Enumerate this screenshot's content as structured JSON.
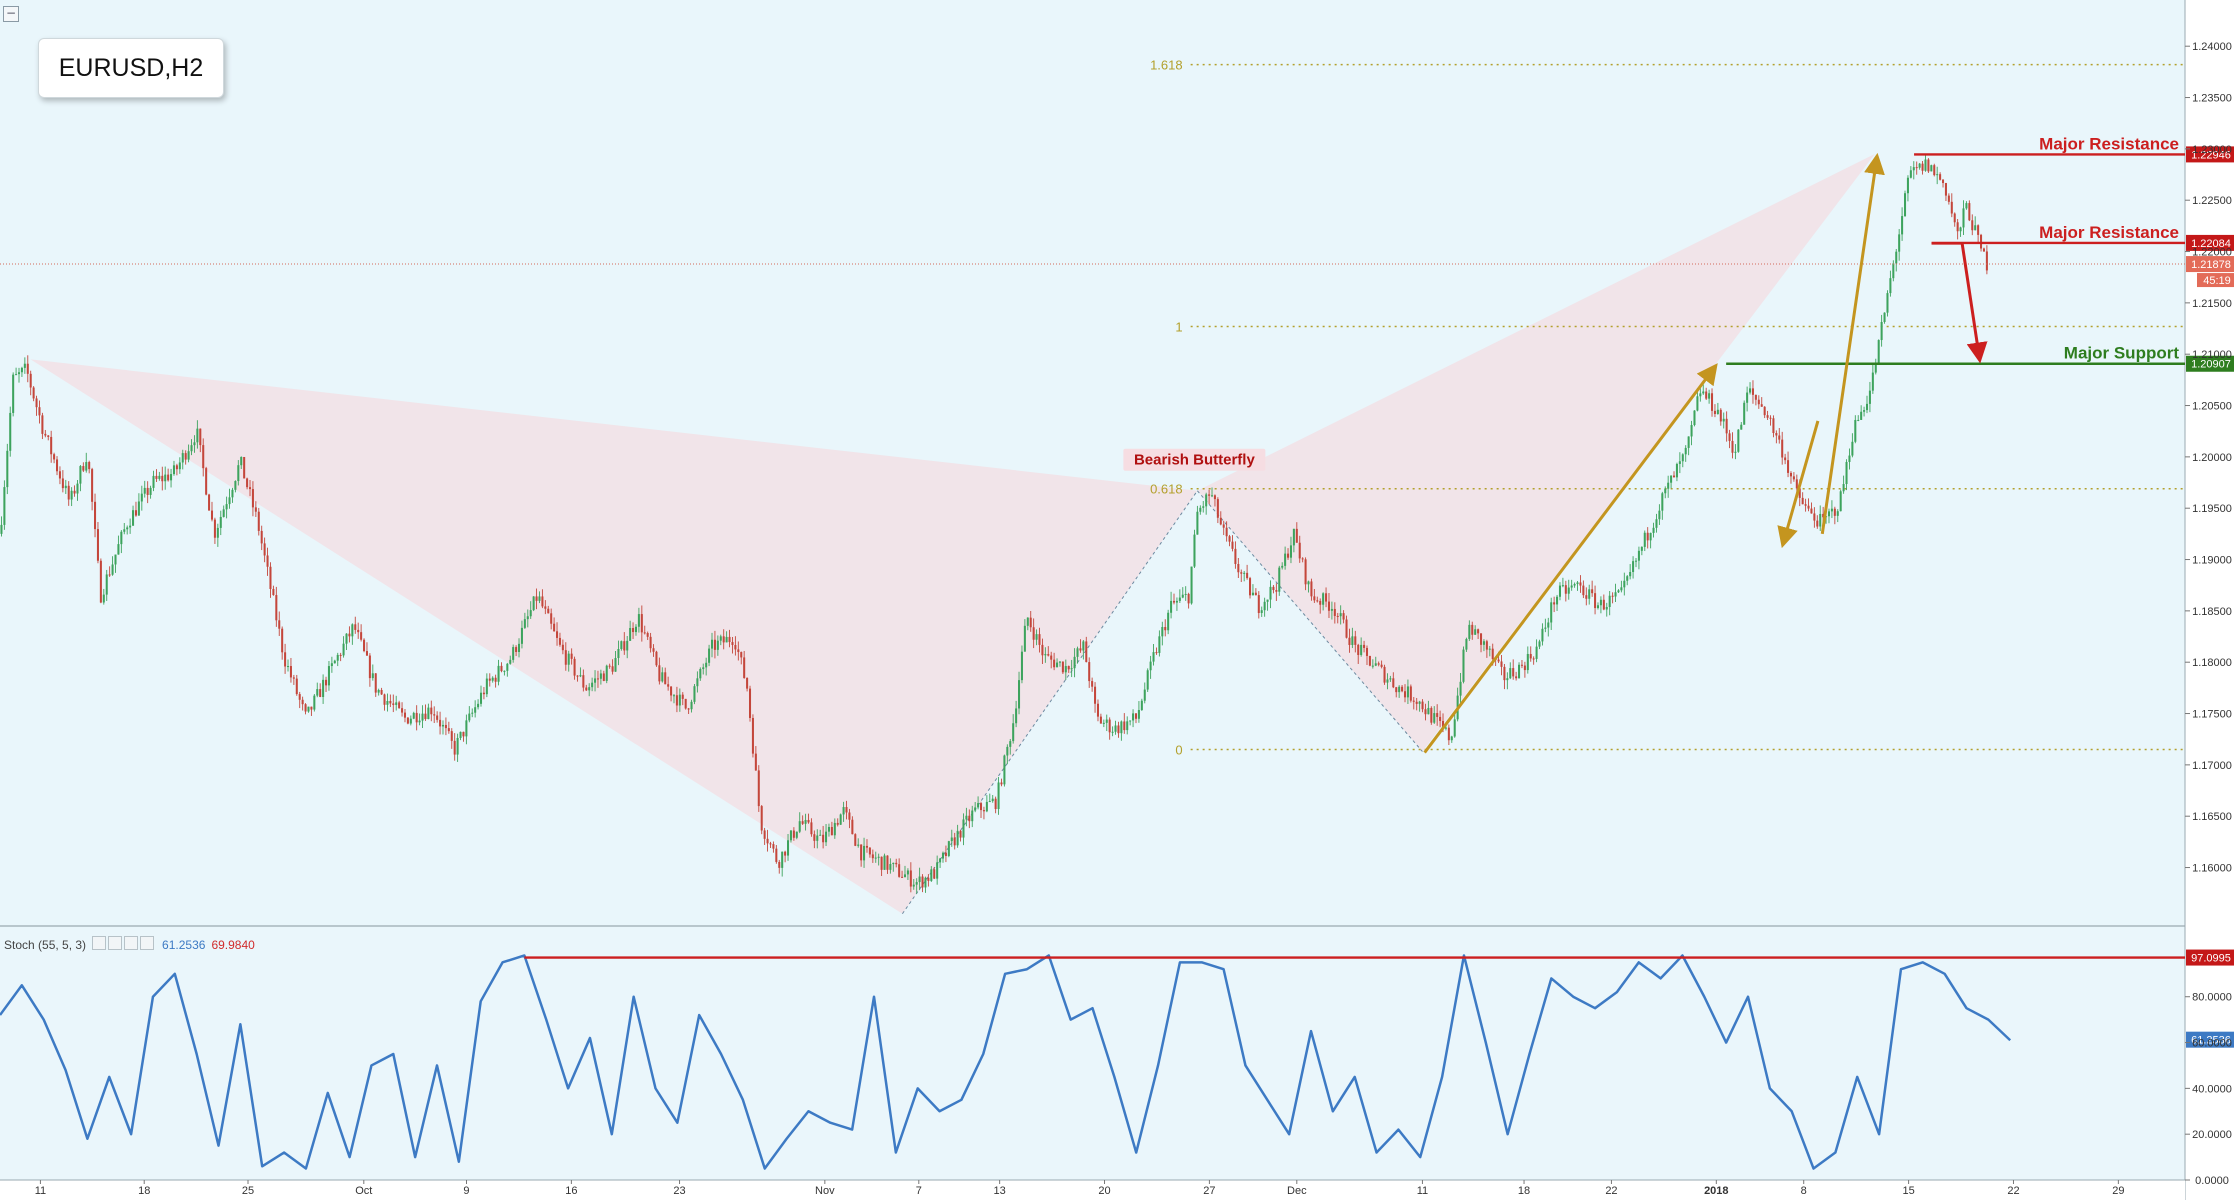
{
  "title": "EURUSD,H2",
  "colors": {
    "background": "#e9f6fb",
    "bullish": "#3da35d",
    "bearish": "#c4463b",
    "resistance": "#cc1f1f",
    "support": "#2e7d1f",
    "fib": "#b3a02c",
    "pattern_fill": "#f3dde3",
    "arrow_gold": "#c4951f",
    "stoch_line": "#3d7ac4",
    "price_line": "#d36a5a"
  },
  "annotations": {
    "resistance_1": "Major Resistance",
    "resistance_2": "Major Resistance",
    "support": "Major Support",
    "pattern": "Bearish Butterfly"
  },
  "stochastic": {
    "label": "Stoch (55, 5, 3)",
    "k_value": "61.2536",
    "d_value": "69.9840"
  },
  "chart_data": [
    {
      "type": "candlestick",
      "title": "EURUSD,H2",
      "ylim": [
        1.1545,
        1.2445
      ],
      "x_ticks": [
        "11",
        "18",
        "25",
        "Oct",
        "9",
        "16",
        "23",
        "Nov",
        "7",
        "13",
        "20",
        "27",
        "Dec",
        "11",
        "18",
        "22",
        "2018",
        "8",
        "15",
        "22",
        "29"
      ],
      "y_ticks": [
        "1.24000",
        "1.23500",
        "1.23000",
        "1.22500",
        "1.22000",
        "1.21500",
        "1.21000",
        "1.20500",
        "1.20000",
        "1.19500",
        "1.19000",
        "1.18500",
        "1.18000",
        "1.17500",
        "1.17000",
        "1.16500",
        "1.16000"
      ],
      "price_path": [
        [
          0,
          1.1925
        ],
        [
          0.006,
          1.2075
        ],
        [
          0.012,
          1.2085
        ],
        [
          0.02,
          1.2025
        ],
        [
          0.032,
          1.1955
        ],
        [
          0.04,
          1.2005
        ],
        [
          0.046,
          1.1865
        ],
        [
          0.058,
          1.1935
        ],
        [
          0.07,
          1.1975
        ],
        [
          0.08,
          1.1985
        ],
        [
          0.09,
          1.2025
        ],
        [
          0.098,
          1.1925
        ],
        [
          0.11,
          1.1995
        ],
        [
          0.118,
          1.1935
        ],
        [
          0.13,
          1.1805
        ],
        [
          0.14,
          1.1745
        ],
        [
          0.152,
          1.1795
        ],
        [
          0.162,
          1.1835
        ],
        [
          0.172,
          1.1775
        ],
        [
          0.185,
          1.1745
        ],
        [
          0.198,
          1.1755
        ],
        [
          0.208,
          1.1715
        ],
        [
          0.222,
          1.1775
        ],
        [
          0.234,
          1.1805
        ],
        [
          0.246,
          1.1865
        ],
        [
          0.256,
          1.1815
        ],
        [
          0.268,
          1.1775
        ],
        [
          0.28,
          1.1795
        ],
        [
          0.292,
          1.1845
        ],
        [
          0.302,
          1.1785
        ],
        [
          0.314,
          1.1755
        ],
        [
          0.326,
          1.1815
        ],
        [
          0.336,
          1.1825
        ],
        [
          0.342,
          1.1775
        ],
        [
          0.348,
          1.1645
        ],
        [
          0.356,
          1.1605
        ],
        [
          0.366,
          1.1645
        ],
        [
          0.376,
          1.1625
        ],
        [
          0.386,
          1.1655
        ],
        [
          0.394,
          1.1615
        ],
        [
          0.404,
          1.1605
        ],
        [
          0.412,
          1.1595
        ],
        [
          0.42,
          1.1585
        ],
        [
          0.428,
          1.1595
        ],
        [
          0.436,
          1.1625
        ],
        [
          0.446,
          1.1655
        ],
        [
          0.456,
          1.1665
        ],
        [
          0.464,
          1.1745
        ],
        [
          0.47,
          1.1845
        ],
        [
          0.478,
          1.1805
        ],
        [
          0.488,
          1.1795
        ],
        [
          0.496,
          1.1815
        ],
        [
          0.502,
          1.1745
        ],
        [
          0.51,
          1.1735
        ],
        [
          0.52,
          1.1745
        ],
        [
          0.528,
          1.1805
        ],
        [
          0.536,
          1.1855
        ],
        [
          0.544,
          1.1865
        ],
        [
          0.548,
          1.1945
        ],
        [
          0.554,
          1.1965
        ],
        [
          0.56,
          1.1925
        ],
        [
          0.568,
          1.1885
        ],
        [
          0.576,
          1.1855
        ],
        [
          0.584,
          1.1875
        ],
        [
          0.592,
          1.1925
        ],
        [
          0.6,
          1.1865
        ],
        [
          0.61,
          1.1855
        ],
        [
          0.62,
          1.1815
        ],
        [
          0.63,
          1.1795
        ],
        [
          0.64,
          1.1775
        ],
        [
          0.648,
          1.1765
        ],
        [
          0.656,
          1.1745
        ],
        [
          0.664,
          1.1725
        ],
        [
          0.672,
          1.1835
        ],
        [
          0.68,
          1.1815
        ],
        [
          0.688,
          1.1785
        ],
        [
          0.696,
          1.1795
        ],
        [
          0.704,
          1.1815
        ],
        [
          0.712,
          1.1865
        ],
        [
          0.722,
          1.1875
        ],
        [
          0.732,
          1.1855
        ],
        [
          0.742,
          1.1865
        ],
        [
          0.752,
          1.1915
        ],
        [
          0.762,
          1.1965
        ],
        [
          0.772,
          1.2005
        ],
        [
          0.778,
          1.2065
        ],
        [
          0.786,
          1.2045
        ],
        [
          0.794,
          1.2005
        ],
        [
          0.8,
          1.2065
        ],
        [
          0.808,
          1.2045
        ],
        [
          0.816,
          1.2005
        ],
        [
          0.822,
          1.1965
        ],
        [
          0.828,
          1.1945
        ],
        [
          0.834,
          1.1935
        ],
        [
          0.842,
          1.1955
        ],
        [
          0.848,
          1.2025
        ],
        [
          0.856,
          1.2065
        ],
        [
          0.862,
          1.2135
        ],
        [
          0.868,
          1.2205
        ],
        [
          0.874,
          1.2275
        ],
        [
          0.882,
          1.2285
        ],
        [
          0.89,
          1.2265
        ],
        [
          0.896,
          1.2215
        ],
        [
          0.9,
          1.2245
        ],
        [
          0.906,
          1.2205
        ],
        [
          0.91,
          1.2185
        ]
      ]
    },
    {
      "type": "line",
      "series": [
        {
          "name": "Stoch (55, 5, 3)",
          "points": [
            [
              0,
              72
            ],
            [
              0.01,
              85
            ],
            [
              0.02,
              70
            ],
            [
              0.03,
              48
            ],
            [
              0.04,
              18
            ],
            [
              0.05,
              45
            ],
            [
              0.06,
              20
            ],
            [
              0.07,
              80
            ],
            [
              0.08,
              90
            ],
            [
              0.09,
              55
            ],
            [
              0.1,
              15
            ],
            [
              0.11,
              68
            ],
            [
              0.12,
              6
            ],
            [
              0.13,
              12
            ],
            [
              0.14,
              5
            ],
            [
              0.15,
              38
            ],
            [
              0.16,
              10
            ],
            [
              0.17,
              50
            ],
            [
              0.18,
              55
            ],
            [
              0.19,
              10
            ],
            [
              0.2,
              50
            ],
            [
              0.21,
              8
            ],
            [
              0.22,
              78
            ],
            [
              0.23,
              95
            ],
            [
              0.24,
              98
            ],
            [
              0.25,
              70
            ],
            [
              0.26,
              40
            ],
            [
              0.27,
              62
            ],
            [
              0.28,
              20
            ],
            [
              0.29,
              80
            ],
            [
              0.3,
              40
            ],
            [
              0.31,
              25
            ],
            [
              0.32,
              72
            ],
            [
              0.33,
              55
            ],
            [
              0.34,
              35
            ],
            [
              0.35,
              5
            ],
            [
              0.36,
              18
            ],
            [
              0.37,
              30
            ],
            [
              0.38,
              25
            ],
            [
              0.39,
              22
            ],
            [
              0.4,
              80
            ],
            [
              0.41,
              12
            ],
            [
              0.42,
              40
            ],
            [
              0.43,
              30
            ],
            [
              0.44,
              35
            ],
            [
              0.45,
              55
            ],
            [
              0.46,
              90
            ],
            [
              0.47,
              92
            ],
            [
              0.48,
              98
            ],
            [
              0.49,
              70
            ],
            [
              0.5,
              75
            ],
            [
              0.51,
              45
            ],
            [
              0.52,
              12
            ],
            [
              0.53,
              50
            ],
            [
              0.54,
              95
            ],
            [
              0.55,
              95
            ],
            [
              0.56,
              92
            ],
            [
              0.57,
              50
            ],
            [
              0.58,
              35
            ],
            [
              0.59,
              20
            ],
            [
              0.6,
              65
            ],
            [
              0.61,
              30
            ],
            [
              0.62,
              45
            ],
            [
              0.63,
              12
            ],
            [
              0.64,
              22
            ],
            [
              0.65,
              10
            ],
            [
              0.66,
              45
            ],
            [
              0.67,
              98
            ],
            [
              0.68,
              60
            ],
            [
              0.69,
              20
            ],
            [
              0.7,
              55
            ],
            [
              0.71,
              88
            ],
            [
              0.72,
              80
            ],
            [
              0.73,
              75
            ],
            [
              0.74,
              82
            ],
            [
              0.75,
              95
            ],
            [
              0.76,
              88
            ],
            [
              0.77,
              98
            ],
            [
              0.78,
              80
            ],
            [
              0.79,
              60
            ],
            [
              0.8,
              80
            ],
            [
              0.81,
              40
            ],
            [
              0.82,
              30
            ],
            [
              0.83,
              5
            ],
            [
              0.84,
              12
            ],
            [
              0.85,
              45
            ],
            [
              0.86,
              20
            ],
            [
              0.87,
              92
            ],
            [
              0.88,
              95
            ],
            [
              0.89,
              90
            ],
            [
              0.9,
              75
            ],
            [
              0.91,
              70
            ],
            [
              0.92,
              61
            ]
          ]
        }
      ],
      "ylim": [
        0,
        110
      ],
      "y_ticks": [
        "80.0000",
        "60.0000",
        "40.0000",
        "20.0000",
        "0.0000"
      ]
    }
  ],
  "levels": {
    "resistance_1": {
      "price": 1.22946,
      "label": "1.22946"
    },
    "resistance_2": {
      "price": 1.22084,
      "label": "1.22084"
    },
    "support": {
      "price": 1.20907,
      "label": "1.20907"
    },
    "current": {
      "price": 1.21878,
      "label": "1.21878",
      "countdown": "45:19"
    },
    "stoch_level": {
      "value": 97.0995,
      "label": "97.0995"
    }
  },
  "fib": [
    {
      "label": "1.618",
      "price": 1.2382
    },
    {
      "label": "1",
      "price": 1.2127
    },
    {
      "label": "0.618",
      "price": 1.1969
    },
    {
      "label": "0",
      "price": 1.1715
    }
  ],
  "pattern": {
    "X": [
      0.014,
      1.2095
    ],
    "A": [
      0.413,
      1.1555
    ],
    "B": [
      0.548,
      1.1967
    ],
    "C": [
      0.651,
      1.1713
    ],
    "D": [
      0.858,
      1.2295
    ]
  }
}
